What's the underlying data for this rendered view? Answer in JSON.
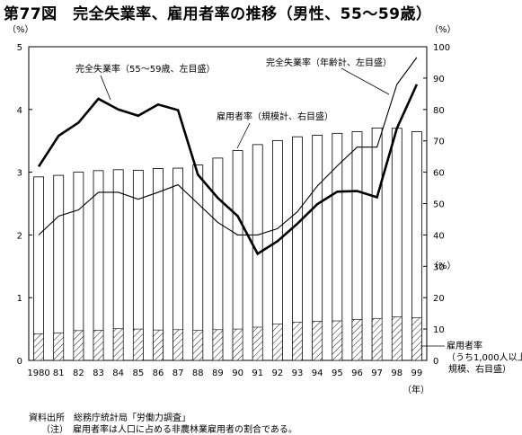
{
  "title": "第77図　完全失業率、雇用者率の推移（男性、55〜59歳）",
  "chart_data": {
    "type": "bar+line",
    "categories": [
      "1980",
      "81",
      "82",
      "83",
      "84",
      "85",
      "86",
      "87",
      "88",
      "89",
      "90",
      "91",
      "92",
      "93",
      "94",
      "95",
      "96",
      "97",
      "98",
      "99"
    ],
    "x_unit": "（年）",
    "left_axis": {
      "unit": "（%）",
      "ylim": [
        0,
        5
      ],
      "ticks": [
        0,
        1,
        2,
        3,
        4,
        5
      ]
    },
    "right_axis": {
      "unit": "（%）",
      "ylim": [
        0,
        100
      ],
      "ticks": [
        0,
        10,
        20,
        30,
        40,
        50,
        60,
        70,
        80,
        90,
        100
      ]
    },
    "series": [
      {
        "name": "雇用者率（規模計、右目盛）",
        "axis": "right",
        "style": "bar",
        "values": [
          58.5,
          59,
          60,
          60.5,
          60.8,
          60.6,
          61.2,
          61.3,
          62.3,
          64.5,
          66.9,
          68.8,
          70.1,
          71.3,
          71.8,
          72.4,
          72.9,
          74.1,
          74,
          72.9
        ]
      },
      {
        "name": "雇用者率（うち1,000人以上規模、右目盛）",
        "axis": "right",
        "style": "hatched-bar",
        "values": [
          8.5,
          8.7,
          9.5,
          9.6,
          10.1,
          10,
          9.7,
          9.8,
          9.6,
          9.8,
          10,
          10.6,
          11.6,
          12.2,
          12.5,
          12.6,
          13.1,
          13.3,
          13.9,
          13.6
        ]
      },
      {
        "name": "完全失業率（55〜59歳、左目盛）",
        "axis": "left",
        "style": "thick-line",
        "values": [
          3.09,
          3.58,
          3.79,
          4.17,
          4,
          3.9,
          4.08,
          3.99,
          2.96,
          2.59,
          2.3,
          1.7,
          1.9,
          2.18,
          2.49,
          2.69,
          2.7,
          2.6,
          3.7,
          4.4
        ]
      },
      {
        "name": "完全失業率（年齢計、左目盛）",
        "axis": "left",
        "style": "thin-line",
        "values": [
          2,
          2.3,
          2.4,
          2.68,
          2.68,
          2.57,
          2.68,
          2.8,
          2.5,
          2.2,
          2,
          2,
          2.1,
          2.37,
          2.78,
          3.1,
          3.4,
          3.4,
          4.4,
          4.83
        ]
      }
    ],
    "annotations": {
      "unemp_55_59": "完全失業率（55〜59歳、左目盛）",
      "unemp_all": "完全失業率（年齢計、左目盛）",
      "emp_rate": "雇用者率（規模計、右目盛）",
      "emp_large_1": "雇用者率",
      "emp_large_2": "（うち1,000人以上",
      "emp_large_3": "規模、右目盛）"
    }
  },
  "footer": {
    "source": "資料出所　総務庁統計局「労働力調査」",
    "note": "（注）　雇用者率は人口に占める非農林業雇用者の割合である。"
  }
}
